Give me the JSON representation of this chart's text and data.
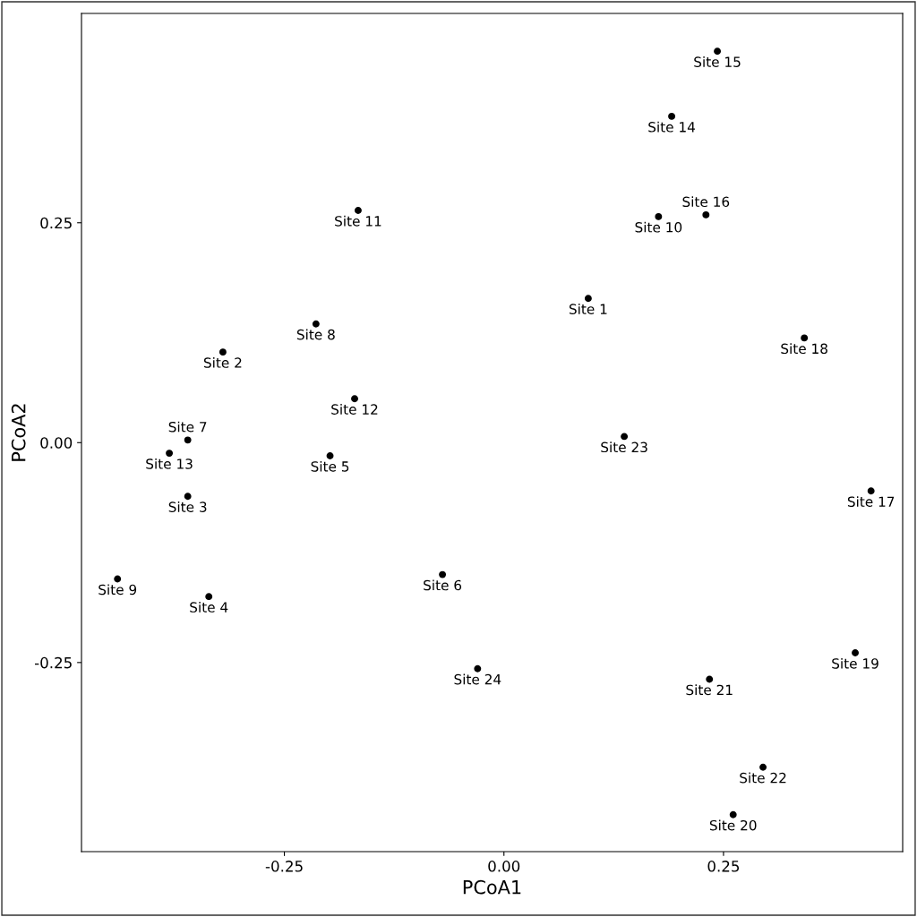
{
  "chart_data": {
    "type": "scatter",
    "xlabel": "PCoA1",
    "ylabel": "PCoA2",
    "xlim": [
      -0.481,
      0.454
    ],
    "ylim": [
      -0.465,
      0.488
    ],
    "xticks": [
      {
        "value": -0.25,
        "label": "-0.25"
      },
      {
        "value": 0,
        "label": "0.00"
      },
      {
        "value": 0.25,
        "label": "0.25"
      }
    ],
    "yticks": [
      {
        "value": -0.25,
        "label": "-0.25"
      },
      {
        "value": 0,
        "label": "0.00"
      },
      {
        "value": 0.25,
        "label": "0.25"
      }
    ],
    "grid": false,
    "legend": false,
    "marker": "circle",
    "series": [
      {
        "color": "#000000",
        "x": [
          0.096,
          -0.32,
          -0.36,
          -0.336,
          -0.198,
          -0.07,
          -0.36,
          -0.214,
          -0.44,
          0.176,
          -0.166,
          -0.17,
          -0.381,
          0.191,
          0.243,
          0.23,
          0.418,
          0.342,
          0.4,
          0.261,
          0.234,
          0.295,
          0.137,
          -0.03
        ],
        "values": [
          0.164,
          0.103,
          -0.061,
          -0.175,
          -0.015,
          -0.15,
          0.003,
          0.135,
          -0.155,
          0.257,
          0.264,
          0.05,
          -0.012,
          0.371,
          0.445,
          0.259,
          -0.055,
          0.119,
          -0.239,
          -0.423,
          -0.269,
          -0.369,
          0.007,
          -0.257
        ],
        "value_labels": [
          "Site 1",
          "Site 2",
          "Site 3",
          "Site 4",
          "Site 5",
          "Site 6",
          "Site 7",
          "Site 8",
          "Site 9",
          "Site 10",
          "Site 11",
          "Site 12",
          "Site 13",
          "Site 14",
          "Site 15",
          "Site 16",
          "Site 17",
          "Site 18",
          "Site 19",
          "Site 20",
          "Site 21",
          "Site 22",
          "Site 23",
          "Site 24"
        ]
      }
    ]
  }
}
